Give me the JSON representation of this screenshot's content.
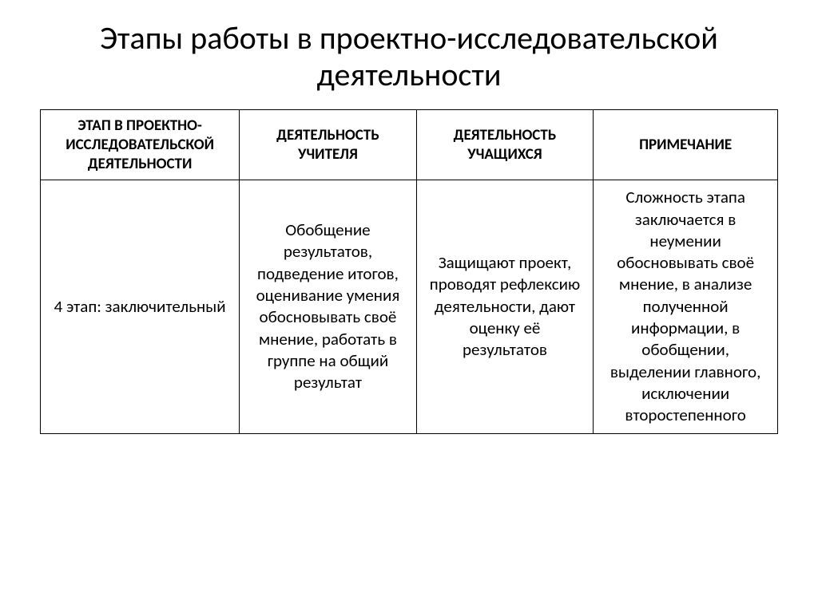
{
  "title": "Этапы работы в проектно-исследовательской деятельности",
  "table": {
    "columns": [
      "ЭТАП В ПРОЕКТНО-ИССЛЕДОВАТЕЛЬСКОЙ ДЕЯТЕЛЬНОСТИ",
      "ДЕЯТЕЛЬНОСТЬ УЧИТЕЛЯ",
      "ДЕЯТЕЛЬНОСТЬ УЧАЩИХСЯ",
      "ПРИМЕЧАНИЕ"
    ],
    "rows": [
      [
        "4 этап: заключительный",
        "Обобщение результатов, подведение итогов, оценивание умения обосновывать своё мнение, работать в группе на общий результат",
        "Защищают проект, проводят рефлексию деятельности, дают оценку её результатов",
        "Сложность этапа заключается в неумении обосновывать своё мнение, в анализе полученной информации, в обобщении, выделении главного, исключении второстепенного"
      ]
    ],
    "column_widths": [
      "27%",
      "24%",
      "24%",
      "25%"
    ],
    "header_fontsize": 19,
    "cell_fontsize": 21,
    "title_fontsize": 40,
    "border_color": "#000000",
    "text_color": "#000000",
    "background_color": "#ffffff"
  }
}
